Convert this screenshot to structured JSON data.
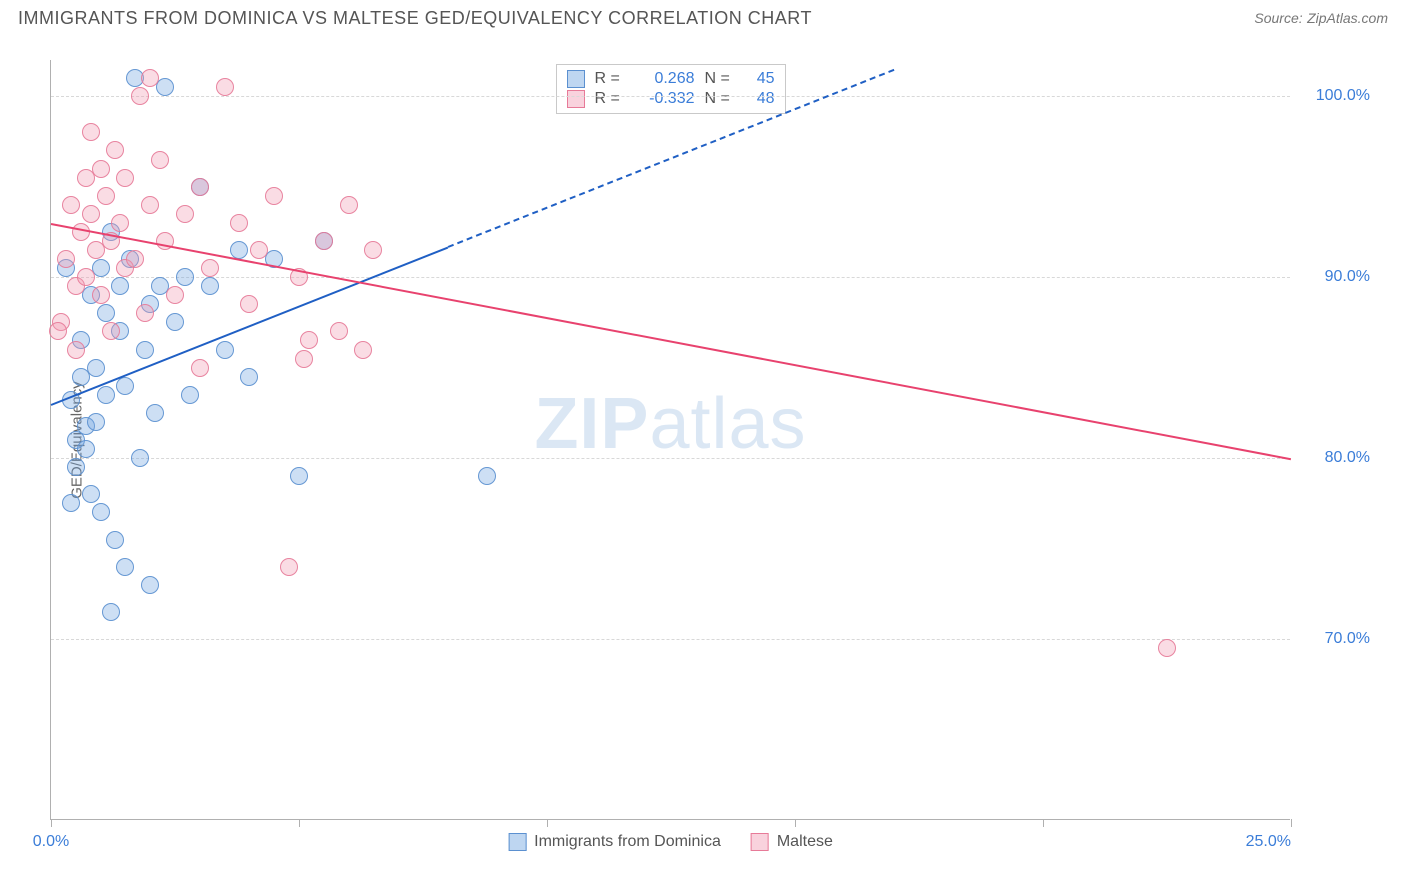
{
  "title": "IMMIGRANTS FROM DOMINICA VS MALTESE GED/EQUIVALENCY CORRELATION CHART",
  "source_label": "Source:",
  "source_value": "ZipAtlas.com",
  "y_axis_label": "GED/Equivalency",
  "watermark_a": "ZIP",
  "watermark_b": "atlas",
  "chart": {
    "type": "scatter",
    "background_color": "#ffffff",
    "grid_color": "#d8d8d8",
    "axis_color": "#b0b0b0",
    "xlim": [
      0,
      25
    ],
    "ylim": [
      60,
      102
    ],
    "x_ticks": [
      0,
      5,
      10,
      15,
      20,
      25
    ],
    "x_tick_labels": {
      "0": "0.0%",
      "25": "25.0%"
    },
    "y_gridlines": [
      70,
      80,
      90,
      100
    ],
    "y_tick_labels": {
      "70": "70.0%",
      "80": "80.0%",
      "90": "90.0%",
      "100": "100.0%"
    },
    "point_radius": 9,
    "point_fill_opacity": 0.35,
    "point_stroke_opacity": 0.9,
    "point_stroke_width": 1.2,
    "series": [
      {
        "name": "Immigrants from Dominica",
        "color": "#6fa3e0",
        "stroke": "#5b90d0",
        "R": "0.268",
        "N": "45",
        "trend": {
          "color": "#1f5fc4",
          "solid": {
            "x1": 0,
            "y1": 83,
            "x2": 8,
            "y2": 91.7
          },
          "dashed": {
            "x1": 8,
            "y1": 91.7,
            "x2": 17,
            "y2": 101.5
          }
        },
        "points": [
          [
            0.3,
            90.5
          ],
          [
            0.4,
            83.2
          ],
          [
            0.5,
            81.0
          ],
          [
            0.5,
            79.5
          ],
          [
            0.6,
            84.5
          ],
          [
            0.6,
            86.5
          ],
          [
            0.7,
            81.8
          ],
          [
            0.7,
            80.5
          ],
          [
            0.8,
            89.0
          ],
          [
            0.8,
            78.0
          ],
          [
            0.9,
            85.0
          ],
          [
            0.9,
            82.0
          ],
          [
            1.0,
            90.5
          ],
          [
            1.0,
            77.0
          ],
          [
            1.1,
            88.0
          ],
          [
            1.1,
            83.5
          ],
          [
            1.2,
            92.5
          ],
          [
            1.3,
            75.5
          ],
          [
            1.4,
            87.0
          ],
          [
            1.4,
            89.5
          ],
          [
            1.5,
            74.0
          ],
          [
            1.5,
            84.0
          ],
          [
            1.6,
            91.0
          ],
          [
            1.7,
            101.0
          ],
          [
            1.9,
            86.0
          ],
          [
            2.0,
            88.5
          ],
          [
            2.0,
            73.0
          ],
          [
            2.2,
            89.5
          ],
          [
            2.3,
            100.5
          ],
          [
            2.5,
            87.5
          ],
          [
            2.7,
            90.0
          ],
          [
            3.0,
            95.0
          ],
          [
            3.2,
            89.5
          ],
          [
            3.5,
            86.0
          ],
          [
            3.8,
            91.5
          ],
          [
            4.0,
            84.5
          ],
          [
            4.5,
            91.0
          ],
          [
            5.0,
            79.0
          ],
          [
            5.5,
            92.0
          ],
          [
            1.2,
            71.5
          ],
          [
            1.8,
            80.0
          ],
          [
            2.1,
            82.5
          ],
          [
            2.8,
            83.5
          ],
          [
            8.8,
            79.0
          ],
          [
            0.4,
            77.5
          ]
        ]
      },
      {
        "name": "Maltese",
        "color": "#f29bb3",
        "stroke": "#e77a98",
        "R": "-0.332",
        "N": "48",
        "trend": {
          "color": "#e8426e",
          "solid": {
            "x1": 0,
            "y1": 93.0,
            "x2": 25,
            "y2": 80.0
          }
        },
        "points": [
          [
            0.2,
            87.5
          ],
          [
            0.3,
            91.0
          ],
          [
            0.4,
            94.0
          ],
          [
            0.5,
            89.5
          ],
          [
            0.5,
            86.0
          ],
          [
            0.6,
            92.5
          ],
          [
            0.7,
            95.5
          ],
          [
            0.7,
            90.0
          ],
          [
            0.8,
            93.5
          ],
          [
            0.8,
            98.0
          ],
          [
            0.9,
            91.5
          ],
          [
            1.0,
            96.0
          ],
          [
            1.0,
            89.0
          ],
          [
            1.1,
            94.5
          ],
          [
            1.2,
            92.0
          ],
          [
            1.2,
            87.0
          ],
          [
            1.3,
            97.0
          ],
          [
            1.4,
            93.0
          ],
          [
            1.5,
            90.5
          ],
          [
            1.5,
            95.5
          ],
          [
            1.7,
            91.0
          ],
          [
            1.8,
            100.0
          ],
          [
            1.9,
            88.0
          ],
          [
            2.0,
            94.0
          ],
          [
            2.2,
            96.5
          ],
          [
            2.3,
            92.0
          ],
          [
            2.5,
            89.0
          ],
          [
            2.7,
            93.5
          ],
          [
            3.0,
            95.0
          ],
          [
            3.2,
            90.5
          ],
          [
            3.5,
            100.5
          ],
          [
            3.8,
            93.0
          ],
          [
            4.0,
            88.5
          ],
          [
            4.2,
            91.5
          ],
          [
            4.5,
            94.5
          ],
          [
            5.0,
            90.0
          ],
          [
            5.2,
            86.5
          ],
          [
            5.5,
            92.0
          ],
          [
            5.8,
            87.0
          ],
          [
            6.0,
            94.0
          ],
          [
            6.3,
            86.0
          ],
          [
            6.5,
            91.5
          ],
          [
            4.8,
            74.0
          ],
          [
            5.1,
            85.5
          ],
          [
            2.0,
            101.0
          ],
          [
            0.15,
            87.0
          ],
          [
            22.5,
            69.5
          ],
          [
            3.0,
            85.0
          ]
        ]
      }
    ],
    "legend_top": {
      "R_label": "R =",
      "N_label": "N ="
    },
    "legend_bottom": true
  }
}
